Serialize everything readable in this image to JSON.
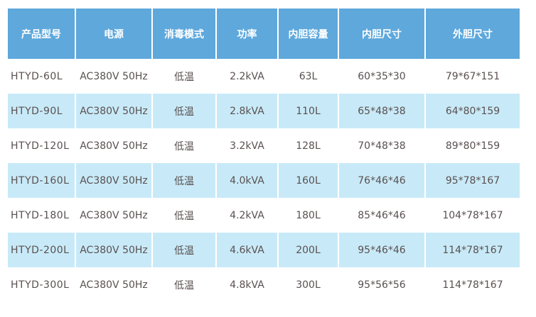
{
  "colors": {
    "header": "#5ea8dc",
    "alt_row": "#c8eaf8"
  },
  "headers": [
    "产品型号",
    "电源",
    "消毒模式",
    "功率",
    "内胆容量",
    "内胆尺寸",
    "外胆尺寸"
  ],
  "rows": [
    [
      "HTYD-60L",
      "AC380V 50Hz",
      "低温",
      "2.2kVA",
      "63L",
      "60*35*30",
      "79*67*151"
    ],
    [
      "HTYD-90L",
      "AC380V 50Hz",
      "低温",
      "2.8kVA",
      "110L",
      "65*48*38",
      "64*80*159"
    ],
    [
      "HTYD-120L",
      "AC380V 50Hz",
      "低温",
      "3.2kVA",
      "128L",
      "70*48*38",
      "89*80*159"
    ],
    [
      "HTYD-160L",
      "AC380V 50Hz",
      "低温",
      "4.0kVA",
      "160L",
      "76*46*46",
      "95*78*167"
    ],
    [
      "HTYD-180L",
      "AC380V 50Hz",
      "低温",
      "4.2kVA",
      "180L",
      "85*46*46",
      "104*78*167"
    ],
    [
      "HTYD-200L",
      "AC380V 50Hz",
      "低温",
      "4.6kVA",
      "200L",
      "95*46*46",
      "114*78*167"
    ],
    [
      "HTYD-300L",
      "AC380V 50Hz",
      "低温",
      "4.8kVA",
      "300L",
      "95*56*56",
      "114*78*167"
    ]
  ]
}
